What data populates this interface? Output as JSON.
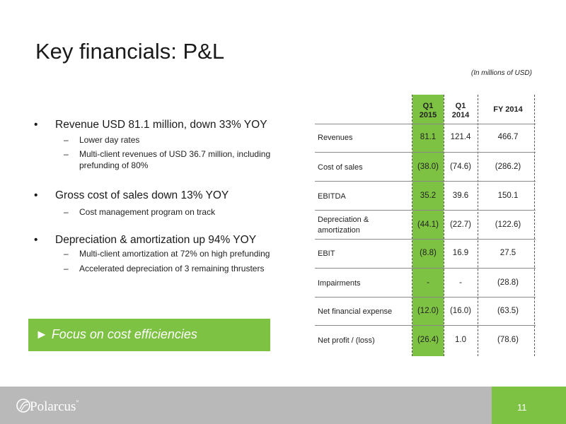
{
  "title": "Key financials: P&L",
  "units_note": "(In millions of USD)",
  "bullets": [
    {
      "text": "Revenue USD 81.1 million, down 33% YOY",
      "subs": [
        "Lower day rates",
        "Multi-client revenues of USD 36.7 million, including prefunding of 80%"
      ]
    },
    {
      "text": "Gross cost of sales down 13% YOY",
      "subs": [
        "Cost management program on track"
      ]
    },
    {
      "text": "Depreciation & amortization up 94% YOY",
      "subs": [
        "Multi-client amortization at 72% on high prefunding",
        "Accelerated depreciation of 3 remaining thrusters"
      ]
    }
  ],
  "bullet_symbol": "•",
  "dash_symbol": "–",
  "callout": "► Focus on cost efficiencies",
  "table": {
    "headers": [
      "Q1\n2015",
      "Q1\n2014",
      "FY 2014"
    ],
    "rows": [
      {
        "label": "Revenues",
        "values": [
          "81.1",
          "121.4",
          "466.7"
        ]
      },
      {
        "label": "Cost of sales",
        "values": [
          "(38.0)",
          "(74.6)",
          "(286.2)"
        ]
      },
      {
        "label": "EBITDA",
        "values": [
          "35.2",
          "39.6",
          "150.1"
        ]
      },
      {
        "label": "Depreciation & amortization",
        "values": [
          "(44.1)",
          "(22.7)",
          "(122.6)"
        ]
      },
      {
        "label": "EBIT",
        "values": [
          "(8.8)",
          "16.9",
          "27.5"
        ]
      },
      {
        "label": "Impairments",
        "values": [
          "-",
          "-",
          "(28.8)"
        ]
      },
      {
        "label": "Net financial expense",
        "values": [
          "(12.0)",
          "(16.0)",
          "(63.5)"
        ]
      },
      {
        "label": "Net profit / (loss)",
        "values": [
          "(26.4)",
          "1.0",
          "(78.6)"
        ]
      }
    ]
  },
  "footer": {
    "logo_text": "Polarcus",
    "logo_sup": "°",
    "page_number": "11"
  },
  "colors": {
    "accent_green": "#7dc242",
    "footer_gray": "#b9b9b9"
  }
}
